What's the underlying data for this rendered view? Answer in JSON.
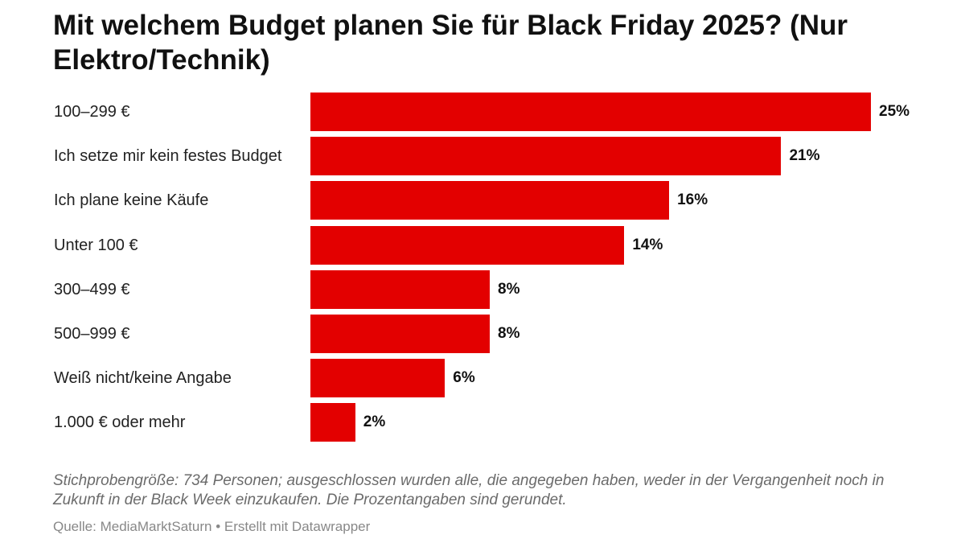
{
  "title": "Mit welchem Budget planen Sie für Black Friday 2025? (Nur Elektro/Technik)",
  "notes": "Stichprobengröße: 734 Personen; ausgeschlossen wurden alle, die angegeben haben, weder in der Vergangenheit noch in Zukunft in der Black Week einzukaufen. Die Prozentangaben sind gerundet.",
  "source": "Quelle: MediaMarktSaturn • Erstellt mit Datawrapper",
  "chart_data": {
    "type": "bar",
    "orientation": "horizontal",
    "title": "Mit welchem Budget planen Sie für Black Friday 2025? (Nur Elektro/Technik)",
    "categories": [
      "100–299 €",
      "Ich setze mir kein festes Budget",
      "Ich plane keine Käufe",
      "Unter 100 €",
      "300–499 €",
      "500–999 €",
      "Weiß nicht/keine Angabe",
      "1.000 € oder mehr"
    ],
    "values": [
      25,
      21,
      16,
      14,
      8,
      8,
      6,
      2
    ],
    "value_labels": [
      "25%",
      "21%",
      "16%",
      "14%",
      "8%",
      "8%",
      "6%",
      "2%"
    ],
    "unit": "%",
    "xlim": [
      0,
      25
    ],
    "grid": false,
    "color": "#e30000"
  }
}
